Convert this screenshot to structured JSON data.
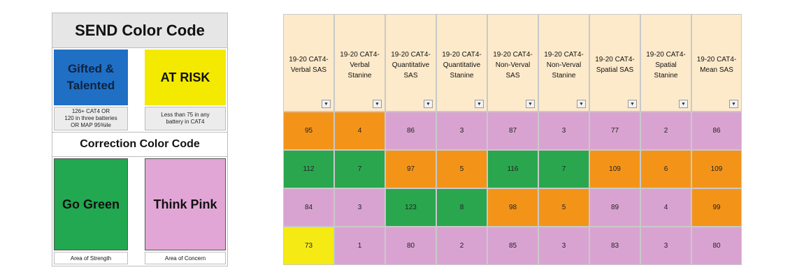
{
  "legend": {
    "title": "SEND Color Code",
    "gifted": {
      "line1": "Gifted &",
      "line2": "Talented",
      "color": "#1f6fc5"
    },
    "gifted_note": {
      "line1": "126+ CAT4  OR",
      "line2": "120 in three batteries",
      "line3": "OR MAP 95%ile"
    },
    "at_risk": {
      "label": "AT RISK",
      "color": "#f3ea00"
    },
    "at_risk_note": {
      "line1": "Less than 75 in any",
      "line2": "battery in CAT4"
    },
    "correction_title": "Correction Color Code",
    "go_green": {
      "label": "Go Green",
      "color": "#22a850"
    },
    "think_pink": {
      "label": "Think Pink",
      "color": "#e2a6d6"
    },
    "strength": "Area of Strength",
    "concern": "Area of Concern"
  },
  "colors": {
    "orange": "#f39419",
    "pink": "#d9a3d1",
    "green": "#2aa64e",
    "yellow": "#f5ea14",
    "header_bg": "#fdeacb"
  },
  "table": {
    "columns": [
      {
        "line1": "19-20 CAT4-",
        "line2": "Verbal SAS"
      },
      {
        "line1": "19-20 CAT4-",
        "line2": "Verbal",
        "line3": "Stanine"
      },
      {
        "line1": "19-20 CAT4-",
        "line2": "Quantitative",
        "line3": "SAS"
      },
      {
        "line1": "19-20 CAT4-",
        "line2": "Quantitative",
        "line3": "Stanine"
      },
      {
        "line1": "19-20 CAT4-",
        "line2": "Non-Verval",
        "line3": "SAS"
      },
      {
        "line1": "19-20 CAT4-",
        "line2": "Non-Verval",
        "line3": "Stanine"
      },
      {
        "line1": "19-20 CAT4-",
        "line2": "Spatial SAS"
      },
      {
        "line1": "19-20 CAT4-",
        "line2": "Spatial",
        "line3": "Stanine"
      },
      {
        "line1": "19-20 CAT4-",
        "line2": "Mean SAS"
      }
    ],
    "filter_icon": "dropdown-arrow-icon",
    "rows": [
      [
        {
          "v": "95",
          "c": "orange"
        },
        {
          "v": "4",
          "c": "orange"
        },
        {
          "v": "86",
          "c": "pink"
        },
        {
          "v": "3",
          "c": "pink"
        },
        {
          "v": "87",
          "c": "pink"
        },
        {
          "v": "3",
          "c": "pink"
        },
        {
          "v": "77",
          "c": "pink"
        },
        {
          "v": "2",
          "c": "pink"
        },
        {
          "v": "86",
          "c": "pink"
        }
      ],
      [
        {
          "v": "112",
          "c": "green"
        },
        {
          "v": "7",
          "c": "green"
        },
        {
          "v": "97",
          "c": "orange"
        },
        {
          "v": "5",
          "c": "orange"
        },
        {
          "v": "116",
          "c": "green"
        },
        {
          "v": "7",
          "c": "green"
        },
        {
          "v": "109",
          "c": "orange"
        },
        {
          "v": "6",
          "c": "orange"
        },
        {
          "v": "109",
          "c": "orange"
        }
      ],
      [
        {
          "v": "84",
          "c": "pink"
        },
        {
          "v": "3",
          "c": "pink"
        },
        {
          "v": "123",
          "c": "green"
        },
        {
          "v": "8",
          "c": "green"
        },
        {
          "v": "98",
          "c": "orange"
        },
        {
          "v": "5",
          "c": "orange"
        },
        {
          "v": "89",
          "c": "pink"
        },
        {
          "v": "4",
          "c": "pink"
        },
        {
          "v": "99",
          "c": "orange"
        }
      ],
      [
        {
          "v": "73",
          "c": "yellow"
        },
        {
          "v": "1",
          "c": "pink"
        },
        {
          "v": "80",
          "c": "pink"
        },
        {
          "v": "2",
          "c": "pink"
        },
        {
          "v": "85",
          "c": "pink"
        },
        {
          "v": "3",
          "c": "pink"
        },
        {
          "v": "83",
          "c": "pink"
        },
        {
          "v": "3",
          "c": "pink"
        },
        {
          "v": "80",
          "c": "pink"
        }
      ]
    ]
  }
}
